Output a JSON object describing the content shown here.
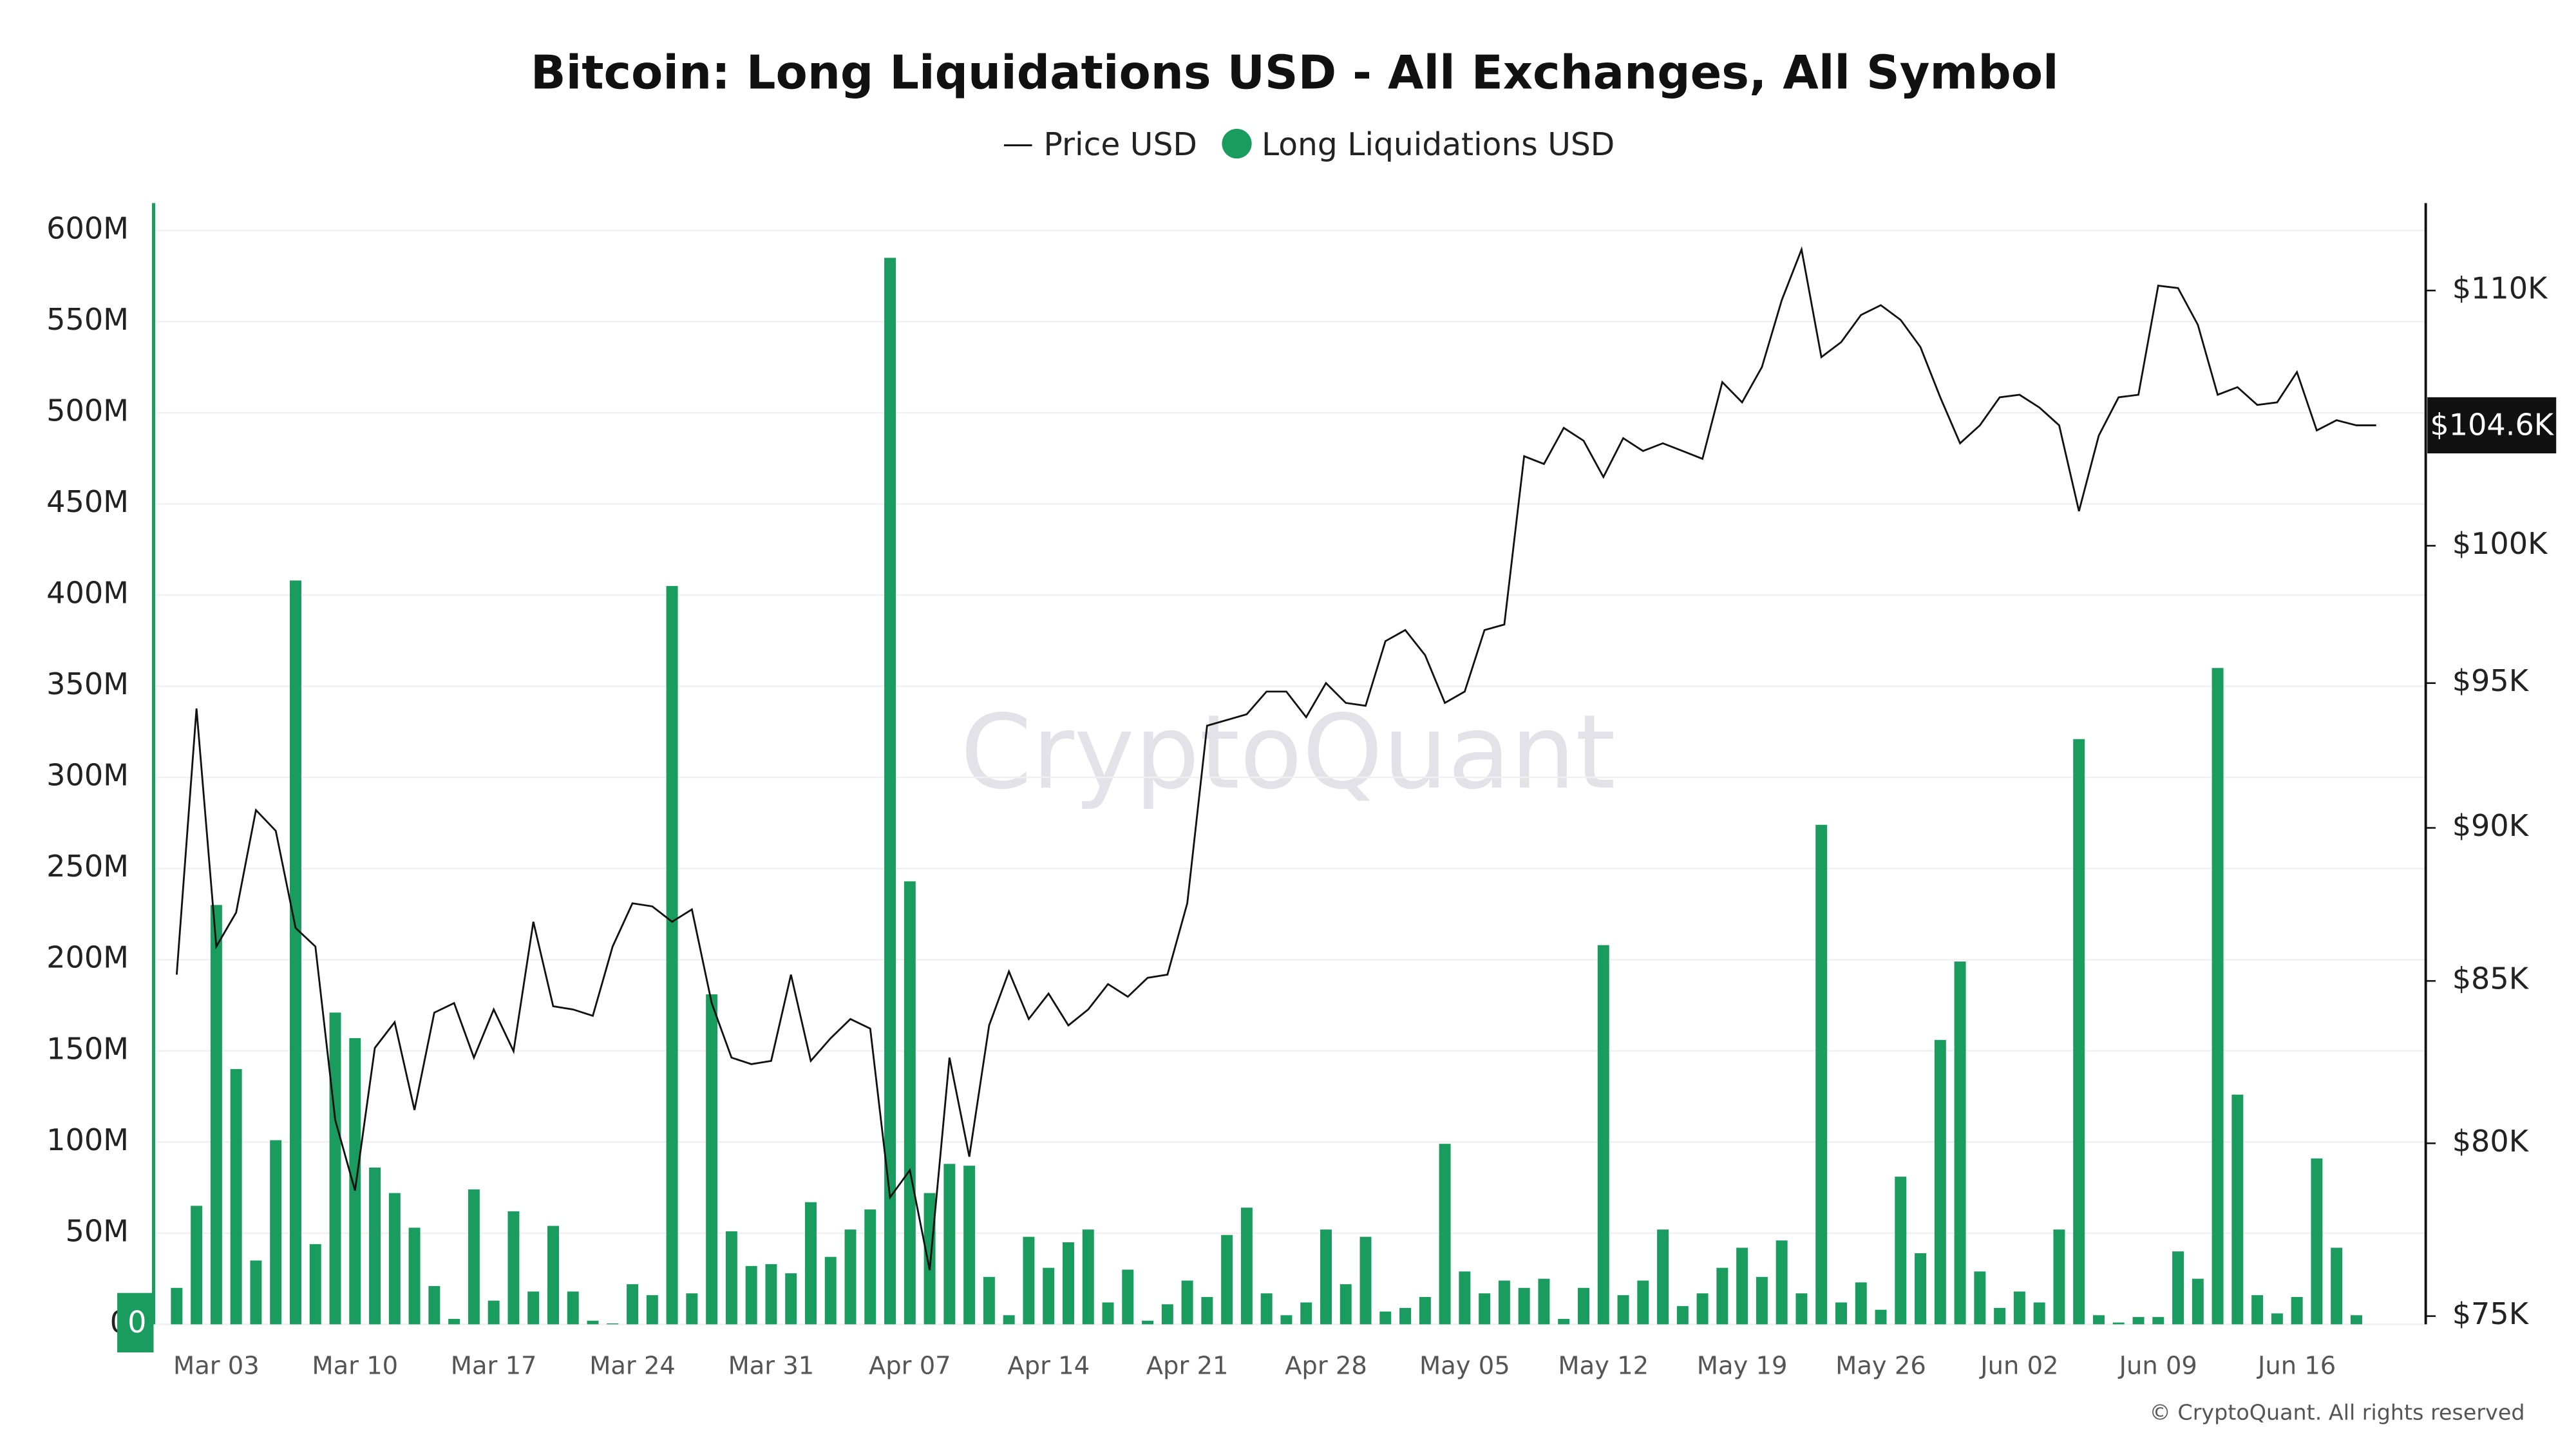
{
  "chart_data": {
    "type": "combo",
    "title": "Bitcoin: Long Liquidations USD - All Exchanges, All Symbol",
    "watermark": "CryptoQuant",
    "copyright": "© CryptoQuant. All rights reserved",
    "categories": [
      null,
      null,
      "Mar 03",
      null,
      null,
      null,
      null,
      null,
      null,
      "Mar 10",
      null,
      null,
      null,
      null,
      null,
      null,
      "Mar 17",
      null,
      null,
      null,
      null,
      null,
      null,
      "Mar 24",
      null,
      null,
      null,
      null,
      null,
      null,
      "Mar 31",
      null,
      null,
      null,
      null,
      null,
      null,
      "Apr 07",
      null,
      null,
      null,
      null,
      null,
      null,
      "Apr 14",
      null,
      null,
      null,
      null,
      null,
      null,
      "Apr 21",
      null,
      null,
      null,
      null,
      null,
      null,
      "Apr 28",
      null,
      null,
      null,
      null,
      null,
      null,
      "May 05",
      null,
      null,
      null,
      null,
      null,
      null,
      "May 12",
      null,
      null,
      null,
      null,
      null,
      null,
      "May 19",
      null,
      null,
      null,
      null,
      null,
      null,
      "May 26",
      null,
      null,
      null,
      null,
      null,
      null,
      "Jun 02",
      null,
      null,
      null,
      null,
      null,
      null,
      "Jun 09",
      null,
      null,
      null,
      null,
      null,
      null,
      "Jun 16",
      null,
      null,
      null,
      null
    ],
    "series": [
      {
        "name": "Price USD",
        "type": "line",
        "axis": "y2",
        "color": "#111111",
        "last_value_label": "$104.6K",
        "values": [
          85200,
          94100,
          86100,
          87200,
          90600,
          89900,
          86700,
          86100,
          80700,
          78600,
          82900,
          83700,
          81000,
          84000,
          84300,
          82600,
          84100,
          82800,
          86900,
          84200,
          84100,
          83900,
          86100,
          87500,
          87400,
          86900,
          87300,
          84300,
          82600,
          82400,
          82500,
          85200,
          82500,
          83200,
          83800,
          83500,
          78400,
          79200,
          76300,
          82600,
          79600,
          83600,
          85300,
          83800,
          84600,
          83600,
          84100,
          84900,
          84500,
          85100,
          85200,
          87500,
          93500,
          93700,
          93900,
          94700,
          94700,
          93800,
          95000,
          94300,
          94200,
          96500,
          96900,
          96000,
          94300,
          94700,
          96900,
          97100,
          103400,
          103100,
          104500,
          104000,
          102600,
          104100,
          103600,
          103900,
          103600,
          103300,
          106300,
          105500,
          106900,
          109600,
          111700,
          107300,
          107900,
          109000,
          109400,
          108800,
          107700,
          105700,
          103900,
          104600,
          105700,
          105800,
          105300,
          104600,
          101300,
          104200,
          105700,
          105800,
          110200,
          110100,
          108600,
          105800,
          106100,
          105400,
          105500,
          106700,
          104400,
          104800,
          104600,
          104600
        ]
      },
      {
        "name": "Long Liquidations USD",
        "type": "bar",
        "color": "#1a9c5f",
        "last_value_label": "0",
        "values": [
          20000000,
          65000000,
          230000000,
          140000000,
          35000000,
          101000000,
          408000000,
          44000000,
          171000000,
          157000000,
          86000000,
          72000000,
          53000000,
          21000000,
          3000000,
          74000000,
          13000000,
          62000000,
          18000000,
          54000000,
          18000000,
          2000000,
          500000,
          22000000,
          16000000,
          405000000,
          17000000,
          181000000,
          51000000,
          32000000,
          33000000,
          28000000,
          67000000,
          37000000,
          52000000,
          63000000,
          585000000,
          243000000,
          72000000,
          88000000,
          87000000,
          26000000,
          5000000,
          48000000,
          31000000,
          45000000,
          52000000,
          12000000,
          30000000,
          2000000,
          11000000,
          24000000,
          15000000,
          49000000,
          64000000,
          17000000,
          5000000,
          12000000,
          52000000,
          22000000,
          48000000,
          7000000,
          9000000,
          15000000,
          99000000,
          29000000,
          17000000,
          24000000,
          20000000,
          25000000,
          3000000,
          20000000,
          208000000,
          16000000,
          24000000,
          52000000,
          10000000,
          17000000,
          31000000,
          42000000,
          26000000,
          46000000,
          17000000,
          274000000,
          12000000,
          23000000,
          8000000,
          81000000,
          39000000,
          156000000,
          199000000,
          29000000,
          9000000,
          18000000,
          12000000,
          52000000,
          321000000,
          5000000,
          1000000,
          4000000,
          4000000,
          40000000,
          25000000,
          360000000,
          126000000,
          16000000,
          6000000,
          15000000,
          91000000,
          42000000,
          5000000,
          0
        ]
      }
    ],
    "ylim": [
      0,
      615000000
    ],
    "yticks": [
      0,
      {
        "value": 50000000,
        "label": "50M"
      },
      {
        "value": 100000000,
        "label": "100M"
      },
      {
        "value": 150000000,
        "label": "150M"
      },
      {
        "value": 200000000,
        "label": "200M"
      },
      {
        "value": 250000000,
        "label": "250M"
      },
      {
        "value": 300000000,
        "label": "300M"
      },
      {
        "value": 350000000,
        "label": "350M"
      },
      {
        "value": 400000000,
        "label": "400M"
      },
      {
        "value": 450000000,
        "label": "450M"
      },
      {
        "value": 500000000,
        "label": "500M"
      },
      {
        "value": 550000000,
        "label": "550M"
      },
      {
        "value": 600000000,
        "label": "600M"
      }
    ],
    "y2lim": [
      74770,
      113650
    ],
    "y2scale": "log",
    "y2ticks": [
      {
        "value": 75000,
        "label": "$75K"
      },
      {
        "value": 80000,
        "label": "$80K"
      },
      {
        "value": 85000,
        "label": "$85K"
      },
      {
        "value": 90000,
        "label": "$90K"
      },
      {
        "value": 95000,
        "label": "$95K"
      },
      {
        "value": 100000,
        "label": "$100K"
      },
      {
        "value": 110000,
        "label": "$110K"
      }
    ],
    "grid": true
  }
}
